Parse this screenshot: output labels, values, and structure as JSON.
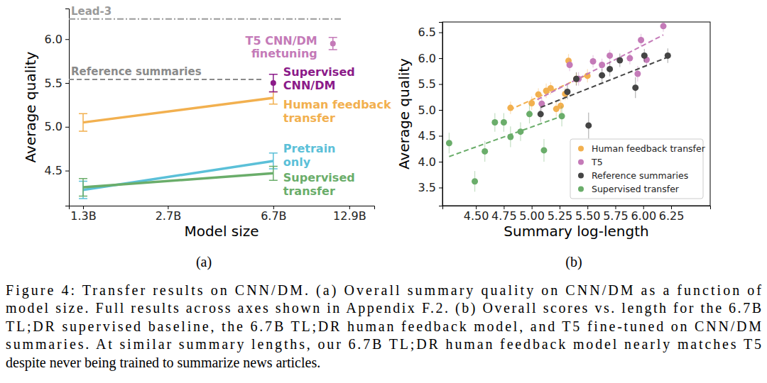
{
  "chart_data": [
    {
      "type": "line",
      "log": "x",
      "x_label": "Model size",
      "y_label": "Average quality",
      "xlim": [
        1.15,
        16
      ],
      "xticks": [
        {
          "value": 1.3,
          "label": "1.3B"
        },
        {
          "value": 2.7,
          "label": "2.7B"
        },
        {
          "value": 6.7,
          "label": "6.7B"
        },
        {
          "value": 12.9,
          "label": "12.9B"
        }
      ],
      "ylim": [
        4.1,
        6.35
      ],
      "yticks": [
        4.5,
        {
          "value": 5,
          "label": "5.0"
        },
        5.5,
        {
          "value": 6,
          "label": "6.0"
        }
      ],
      "series": [
        {
          "name": "Human feedback\ntransfer",
          "color": "#f2b04f",
          "x": [
            1.3,
            6.7
          ],
          "values": [
            5.05,
            5.33
          ],
          "error": [
            0.1,
            0.07
          ]
        },
        {
          "name": "Pretrain\nonly",
          "color": "#5bc0d8",
          "x": [
            1.3,
            6.7
          ],
          "values": [
            4.28,
            4.61
          ],
          "error": [
            0.1,
            0.09
          ]
        },
        {
          "name": "Supervised\ntransfer",
          "color": "#6aad6a",
          "x": [
            1.3,
            6.7
          ],
          "values": [
            4.31,
            4.47
          ],
          "error": [
            0.1,
            0.08
          ]
        },
        {
          "name": "Supervised\nCNN/DM",
          "type": "scatter",
          "color": "#8b1a89",
          "x": [
            6.7
          ],
          "values": [
            5.5
          ],
          "error": [
            0.1
          ]
        },
        {
          "name": "T5 CNN/DM\nfinetuning",
          "type": "scatter",
          "color": "#c47ab8",
          "x": [
            11.2
          ],
          "values": [
            5.95
          ],
          "error": [
            0.07
          ]
        },
        {
          "name": "Lead-3",
          "type": "hline",
          "color": "#9a9a9a",
          "line_style": "dashdot",
          "values": [
            6.23
          ]
        },
        {
          "name": "Reference summaries",
          "type": "hline",
          "color": "#8a8a8a",
          "line_style": "dashed",
          "values": [
            5.54
          ]
        }
      ]
    },
    {
      "type": "scatter",
      "legend": "lower right",
      "x_label": "Summary log-length",
      "y_label": "Average quality",
      "xlim": [
        4.2,
        6.6
      ],
      "xticks": [
        {
          "value": 4.5,
          "label": "4.50"
        },
        4.75,
        {
          "value": 5,
          "label": "5.00"
        },
        5.25,
        {
          "value": 5.5,
          "label": "5.50"
        },
        5.75,
        {
          "value": 6,
          "label": "6.00"
        },
        6.25
      ],
      "ylim": [
        3.15,
        6.7
      ],
      "yticks": [
        3.5,
        {
          "value": 4,
          "label": "4.0"
        },
        4.5,
        {
          "value": 5,
          "label": "5.0"
        },
        5.5,
        {
          "value": 6,
          "label": "6.0"
        },
        6.5
      ],
      "series": [
        {
          "name": "Human feedback transfer",
          "color": "#f2b04f",
          "line_style": "dashed",
          "x": [
            4.81,
            5.0,
            5.06,
            5.13,
            5.17,
            5.22,
            5.26,
            5.3,
            5.33,
            5.4,
            5.5
          ],
          "values": [
            5.04,
            5.13,
            5.3,
            5.37,
            5.42,
            5.02,
            5.08,
            5.31,
            5.95,
            5.6,
            5.66
          ],
          "error": [
            0.12,
            0.13,
            0.12,
            0.14,
            0.12,
            0.15,
            0.14,
            0.12,
            0.13,
            0.12,
            0.13
          ],
          "trend": {
            "x": [
              4.8,
              5.5
            ],
            "y": [
              5.0,
              5.68
            ]
          }
        },
        {
          "name": "T5",
          "color": "#c47ab8",
          "line_style": "dashed",
          "x": [
            5.09,
            5.34,
            5.42,
            5.55,
            5.63,
            5.7,
            5.88,
            5.95,
            5.98,
            6.03,
            6.18
          ],
          "values": [
            5.12,
            5.87,
            5.6,
            5.94,
            5.87,
            6.05,
            6.0,
            5.7,
            6.35,
            5.97,
            6.62
          ],
          "error": [
            0.12,
            0.12,
            0.13,
            0.12,
            0.12,
            0.11,
            0.12,
            0.15,
            0.12,
            0.12,
            0.11
          ],
          "trend": {
            "x": [
              5.05,
              6.18
            ],
            "y": [
              5.2,
              6.45
            ]
          }
        },
        {
          "name": "Reference summaries",
          "color": "#444444",
          "line_style": "dashed",
          "x": [
            5.08,
            5.32,
            5.4,
            5.51,
            5.63,
            5.7,
            5.79,
            5.93,
            6.01,
            6.22
          ],
          "values": [
            4.92,
            5.35,
            5.6,
            4.7,
            5.67,
            5.79,
            5.96,
            5.43,
            6.05,
            6.05
          ],
          "error": [
            0.15,
            0.14,
            0.13,
            0.25,
            0.13,
            0.14,
            0.13,
            0.2,
            0.13,
            0.14
          ],
          "trend": {
            "x": [
              5.08,
              6.22
            ],
            "y": [
              5.05,
              6.02
            ]
          }
        },
        {
          "name": "Supervised transfer",
          "color": "#6aad6a",
          "line_style": "dashed",
          "x": [
            4.26,
            4.49,
            4.58,
            4.67,
            4.75,
            4.81,
            4.9,
            4.98,
            5.11,
            5.27
          ],
          "values": [
            4.36,
            3.62,
            4.2,
            4.76,
            4.76,
            4.48,
            4.58,
            4.92,
            4.22,
            4.88
          ],
          "error": [
            0.2,
            0.2,
            0.2,
            0.18,
            0.18,
            0.2,
            0.18,
            0.18,
            0.22,
            0.2
          ],
          "trend": {
            "x": [
              4.26,
              5.27
            ],
            "y": [
              4.1,
              4.88
            ]
          }
        }
      ]
    }
  ],
  "figure": {
    "panel_labels": [
      "(a)",
      "(b)"
    ],
    "caption": [
      "Figure 4: Transfer results on CNN/DM. (a) Overall summary quality on CNN/DM as a function of",
      "model size. Full results across axes shown in Appendix F.2. (b) Overall scores vs. length for the 6.7B",
      "TL;DR supervised baseline, the 6.7B TL;DR human feedback model, and T5 fine-tuned on CNN/DM",
      "summaries. At similar summary lengths, our 6.7B TL;DR human feedback model nearly matches T5",
      "despite never being trained to summarize news articles."
    ]
  }
}
